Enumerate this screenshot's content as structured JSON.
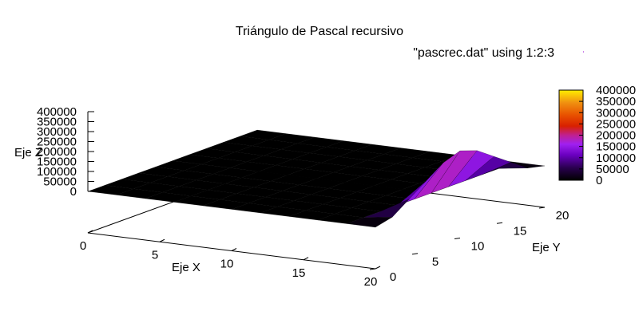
{
  "chart_data": {
    "type": "surface",
    "title": "Triángulo de Pascal recursivo",
    "legend": "\"pascrec.dat\" using 1:2:3",
    "xlabel": "Eje X",
    "ylabel": "Eje Y",
    "zlabel": "Eje Z",
    "xlim": [
      0,
      20
    ],
    "ylim": [
      0,
      20
    ],
    "zlim": [
      0,
      400000
    ],
    "x_ticks": [
      "0",
      "5",
      "10",
      "15",
      "20"
    ],
    "y_ticks": [
      "0",
      "5",
      "10",
      "15",
      "20"
    ],
    "z_ticks": [
      "0",
      "50000",
      "100000",
      "150000",
      "200000",
      "250000",
      "300000",
      "350000",
      "400000"
    ],
    "colorbar_ticks": [
      "0",
      "50000",
      "100000",
      "150000",
      "200000",
      "250000",
      "300000",
      "350000",
      "400000"
    ],
    "colorbar_range": [
      0,
      400000
    ],
    "palette": [
      "#000000",
      "#2a0050",
      "#5500a0",
      "#8a00e0",
      "#a020f0",
      "#c0208a",
      "#d82000",
      "#e85000",
      "#f09010",
      "#ffd700",
      "#ffff00"
    ],
    "x": [
      0,
      2,
      4,
      6,
      8,
      10,
      12,
      14,
      16,
      18,
      20
    ],
    "y": [
      0,
      2,
      4,
      6,
      8,
      10,
      12,
      14,
      16,
      18,
      20
    ],
    "z_by_x": [
      [
        0,
        0,
        0,
        0,
        0,
        0,
        0,
        0,
        0,
        0,
        0
      ],
      [
        0,
        0,
        0,
        0,
        0,
        0,
        0,
        0,
        0,
        0,
        0
      ],
      [
        0,
        0,
        0,
        0,
        0,
        0,
        0,
        0,
        0,
        0,
        0
      ],
      [
        0,
        0,
        0,
        0,
        0,
        0,
        0,
        0,
        0,
        0,
        0
      ],
      [
        0,
        0,
        0,
        0,
        0,
        0,
        0,
        0,
        0,
        0,
        0
      ],
      [
        0,
        0,
        0,
        0,
        0,
        0,
        0,
        0,
        0,
        0,
        0
      ],
      [
        0,
        0,
        0,
        0,
        0,
        0,
        0,
        0,
        0,
        0,
        0
      ],
      [
        0,
        0,
        0,
        0,
        0,
        0,
        0,
        0,
        0,
        0,
        0
      ],
      [
        0,
        0,
        0,
        0,
        0,
        0,
        0,
        0,
        0,
        0,
        0
      ],
      [
        0,
        0,
        0,
        0,
        0,
        0,
        0,
        0,
        0,
        0,
        0
      ],
      [
        0,
        20000,
        80000,
        140000,
        200000,
        230000,
        200000,
        140000,
        80000,
        20000,
        0
      ]
    ]
  }
}
